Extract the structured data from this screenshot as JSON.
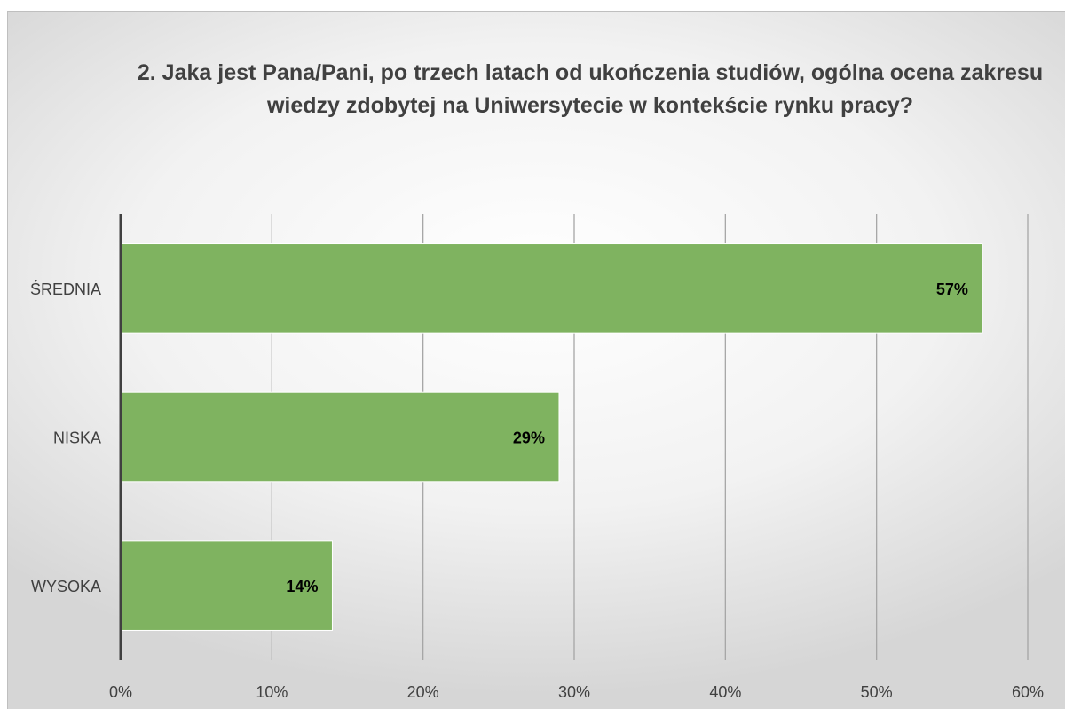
{
  "chart_data": {
    "type": "bar",
    "orientation": "horizontal",
    "title": "2. Jaka jest Pana/Pani, po trzech latach od ukończenia studiów, ogólna ocena zakresu wiedzy zdobytej na Uniwersytecie w kontekście rynku pracy?",
    "categories": [
      "ŚREDNIA",
      "NISKA",
      "WYSOKA"
    ],
    "values": [
      57,
      29,
      14
    ],
    "data_labels": [
      "57%",
      "29%",
      "14%"
    ],
    "xlim": [
      0,
      60
    ],
    "x_ticks": [
      0,
      10,
      20,
      30,
      40,
      50,
      60
    ],
    "x_tick_labels": [
      "0%",
      "10%",
      "20%",
      "30%",
      "40%",
      "50%",
      "60%"
    ],
    "grid": "vertical",
    "legend": "none",
    "colors": {
      "bar": "#7fb360",
      "bar_edge": "#ffffff",
      "grid": "#a6a6a6",
      "axis": "#404040"
    }
  }
}
